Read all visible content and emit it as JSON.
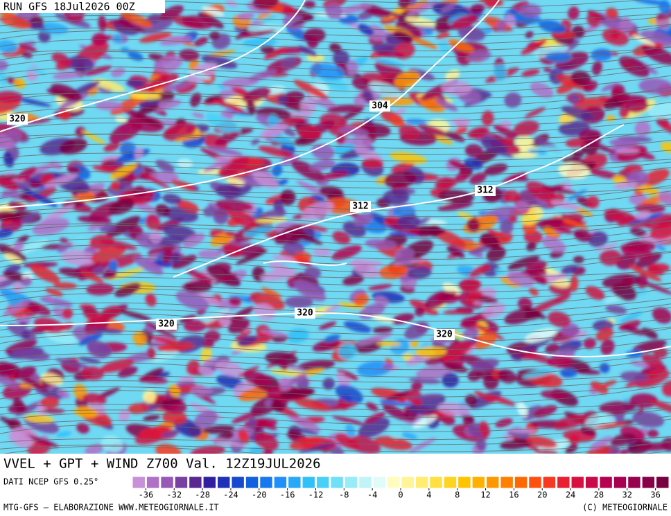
{
  "header": {
    "run": "RUN GFS 18Jul2026 00Z"
  },
  "map": {
    "contour_labels": [
      "320",
      "304",
      "312",
      "312",
      "320",
      "320",
      "320"
    ]
  },
  "title": "VVEL + GPT + WIND Z700 Val. 12Z19JUL2026",
  "source": "DATI NCEP GFS 0.25°",
  "colorbar": {
    "clim": [
      -38,
      38
    ],
    "ticks": [
      -36,
      -32,
      -28,
      -24,
      -20,
      -16,
      -12,
      -8,
      -4,
      0,
      4,
      8,
      12,
      16,
      20,
      24,
      28,
      32,
      36
    ],
    "colors": [
      "#c890d8",
      "#b070c8",
      "#9858b8",
      "#7840a0",
      "#582890",
      "#3020a0",
      "#2030b8",
      "#1848d0",
      "#1060e0",
      "#1878f0",
      "#2090f8",
      "#28a8f8",
      "#30c0f8",
      "#48d0f8",
      "#70e0f8",
      "#98ecf8",
      "#c0f4f8",
      "#e0fcf8",
      "#fffcc0",
      "#fff498",
      "#ffec70",
      "#ffe040",
      "#ffd420",
      "#ffc400",
      "#ffb000",
      "#ff9800",
      "#ff8000",
      "#ff6800",
      "#ff5010",
      "#f83820",
      "#e82030",
      "#d81040",
      "#c80848",
      "#b80050",
      "#a80050",
      "#980050",
      "#880048",
      "#780040"
    ]
  },
  "footer": {
    "left": "MTG-GFS – ELABORAZIONE WWW.METEOGIORNALE.IT",
    "right": "(C) METEOGIORNALE"
  }
}
